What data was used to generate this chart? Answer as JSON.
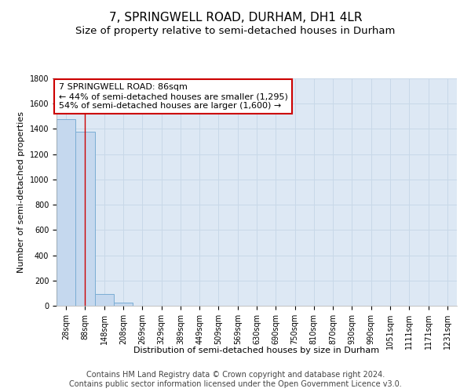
{
  "title": "7, SPRINGWELL ROAD, DURHAM, DH1 4LR",
  "subtitle": "Size of property relative to semi-detached houses in Durham",
  "xlabel": "Distribution of semi-detached houses by size in Durham",
  "ylabel": "Number of semi-detached properties",
  "footer_line1": "Contains HM Land Registry data © Crown copyright and database right 2024.",
  "footer_line2": "Contains public sector information licensed under the Open Government Licence v3.0.",
  "categories": [
    "28sqm",
    "88sqm",
    "148sqm",
    "208sqm",
    "269sqm",
    "329sqm",
    "389sqm",
    "449sqm",
    "509sqm",
    "569sqm",
    "630sqm",
    "690sqm",
    "750sqm",
    "810sqm",
    "870sqm",
    "930sqm",
    "990sqm",
    "1051sqm",
    "1111sqm",
    "1171sqm",
    "1231sqm"
  ],
  "values": [
    1480,
    1380,
    95,
    25,
    0,
    0,
    0,
    0,
    0,
    0,
    0,
    0,
    0,
    0,
    0,
    0,
    0,
    0,
    0,
    0,
    0
  ],
  "bar_color": "#c5d8ee",
  "bar_edge_color": "#7aadd4",
  "ylim": [
    0,
    1800
  ],
  "yticks": [
    0,
    200,
    400,
    600,
    800,
    1000,
    1200,
    1400,
    1600,
    1800
  ],
  "property_line_x": 1.0,
  "annotation_text_line1": "7 SPRINGWELL ROAD: 86sqm",
  "annotation_text_line2": "← 44% of semi-detached houses are smaller (1,295)",
  "annotation_text_line3": "54% of semi-detached houses are larger (1,600) →",
  "annotation_box_facecolor": "#ffffff",
  "annotation_box_edgecolor": "#cc0000",
  "grid_color": "#c8d8e8",
  "background_color": "#dde8f4",
  "title_fontsize": 11,
  "subtitle_fontsize": 9.5,
  "axis_label_fontsize": 8,
  "tick_fontsize": 7,
  "annotation_fontsize": 8,
  "footer_fontsize": 7
}
